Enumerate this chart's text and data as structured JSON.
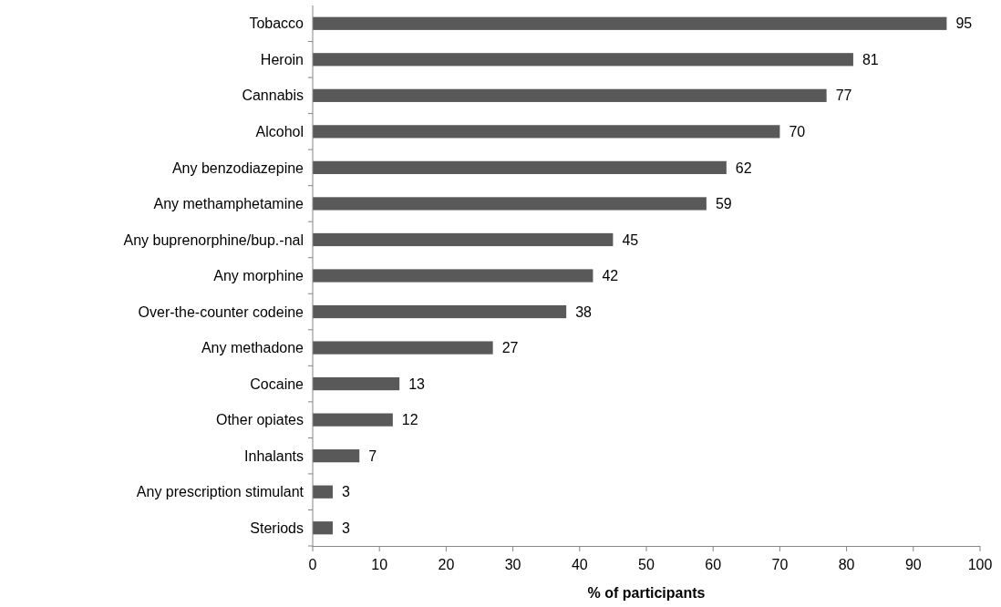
{
  "chart_data": {
    "type": "bar",
    "orientation": "horizontal",
    "categories": [
      "Tobacco",
      "Heroin",
      "Cannabis",
      "Alcohol",
      "Any benzodiazepine",
      "Any methamphetamine",
      "Any buprenorphine/bup.-nal",
      "Any morphine",
      "Over-the-counter codeine",
      "Any methadone",
      "Cocaine",
      "Other opiates",
      "Inhalants",
      "Any prescription stimulant",
      "Steriods"
    ],
    "values": [
      95,
      81,
      77,
      70,
      62,
      59,
      45,
      42,
      38,
      27,
      13,
      12,
      7,
      3,
      3
    ],
    "color": "#595959",
    "xlabel": "% of participants",
    "xlim": [
      0,
      100
    ],
    "xticks": [
      0,
      10,
      20,
      30,
      40,
      50,
      60,
      70,
      80,
      90,
      100
    ],
    "data_labels": true,
    "grid": false
  }
}
